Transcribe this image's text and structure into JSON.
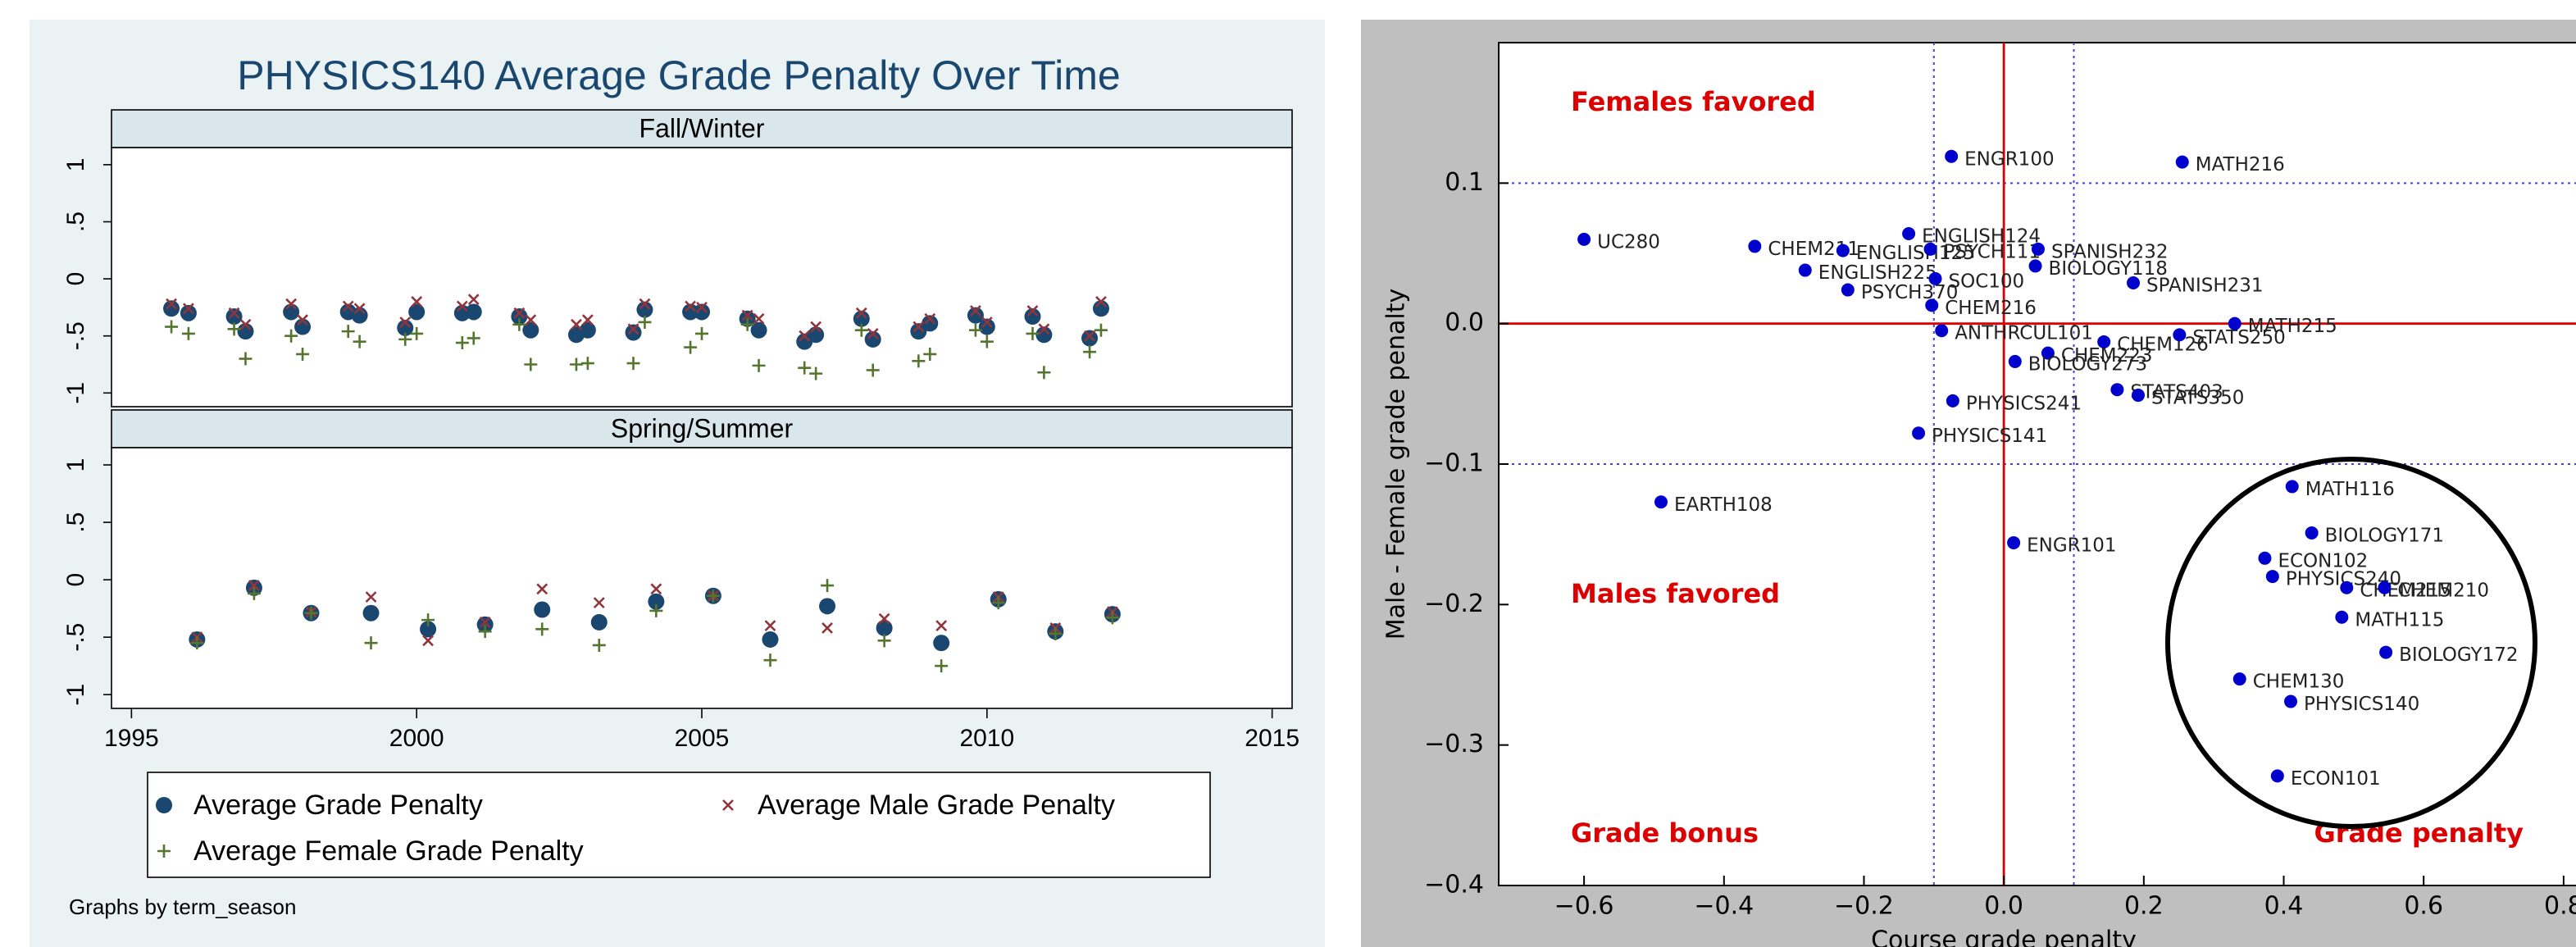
{
  "chart_data": [
    {
      "type": "stata-panels",
      "title": "PHYSICS140 Average Grade Penalty Over Time",
      "xlim": [
        1994.65,
        2015.35
      ],
      "xticks": [
        1995,
        2000,
        2005,
        2010,
        2015
      ],
      "ylim": [
        -1.12,
        1.15
      ],
      "yticks": [
        {
          "value": -1,
          "label": "-1"
        },
        {
          "value": -0.5,
          "label": "-.5"
        },
        0,
        {
          "value": 0.5,
          "label": ".5"
        },
        1
      ],
      "series": [
        {
          "name": "Average Grade Penalty",
          "color": "#1a476f",
          "marker": "circle"
        },
        {
          "name": "Average Male Grade Penalty",
          "color": "#90353b",
          "marker": "x"
        },
        {
          "name": "Average Female Grade Penalty",
          "color": "#55752f",
          "marker": "plus"
        }
      ],
      "panels": [
        {
          "title": "Fall/Winter",
          "x": [
            1995.7,
            1996.0,
            1996.8,
            1997.0,
            1997.8,
            1998.0,
            1998.8,
            1999.0,
            1999.8,
            2000.0,
            2000.8,
            2001.0,
            2001.8,
            2002.0,
            2002.8,
            2003.0,
            2003.8,
            2004.0,
            2004.8,
            2005.0,
            2005.8,
            2006.0,
            2006.8,
            2007.0,
            2007.8,
            2008.0,
            2008.8,
            2009.0,
            2009.8,
            2010.0,
            2010.8,
            2011.0,
            2011.8,
            2012.0
          ],
          "values": [
            [
              -0.26,
              -0.3,
              -0.33,
              -0.46,
              -0.29,
              -0.42,
              -0.29,
              -0.32,
              -0.43,
              -0.29,
              -0.3,
              -0.29,
              -0.33,
              -0.45,
              -0.49,
              -0.45,
              -0.47,
              -0.27,
              -0.29,
              -0.29,
              -0.35,
              -0.45,
              -0.55,
              -0.49,
              -0.35,
              -0.53,
              -0.46,
              -0.39,
              -0.32,
              -0.42,
              -0.33,
              -0.49,
              -0.52,
              -0.26
            ],
            [
              -0.22,
              -0.26,
              -0.3,
              -0.4,
              -0.22,
              -0.36,
              -0.24,
              -0.26,
              -0.38,
              -0.2,
              -0.24,
              -0.18,
              -0.3,
              -0.36,
              -0.4,
              -0.36,
              -0.44,
              -0.22,
              -0.24,
              -0.25,
              -0.32,
              -0.35,
              -0.5,
              -0.42,
              -0.3,
              -0.48,
              -0.42,
              -0.35,
              -0.28,
              -0.38,
              -0.28,
              -0.44,
              -0.5,
              -0.2
            ],
            [
              -0.42,
              -0.48,
              -0.44,
              -0.7,
              -0.5,
              -0.66,
              -0.46,
              -0.55,
              -0.53,
              -0.48,
              -0.56,
              -0.52,
              -0.4,
              -0.75,
              -0.75,
              -0.74,
              -0.74,
              -0.38,
              -0.6,
              -0.48,
              -0.4,
              -0.76,
              -0.78,
              -0.83,
              -0.45,
              -0.8,
              -0.72,
              -0.66,
              -0.45,
              -0.55,
              -0.48,
              -0.82,
              -0.64,
              -0.45
            ]
          ]
        },
        {
          "title": "Spring/Summer",
          "x": [
            1996.15,
            1997.15,
            1998.15,
            1999.2,
            2000.2,
            2001.2,
            2002.2,
            2003.2,
            2004.2,
            2005.2,
            2006.2,
            2007.2,
            2008.2,
            2009.2,
            2010.2,
            2011.2,
            2012.2
          ],
          "values": [
            [
              -0.52,
              -0.07,
              -0.29,
              -0.29,
              -0.43,
              -0.39,
              -0.26,
              -0.37,
              -0.19,
              -0.14,
              -0.52,
              -0.23,
              -0.42,
              -0.55,
              -0.17,
              -0.45,
              -0.3
            ],
            [
              -0.5,
              -0.05,
              -0.28,
              -0.15,
              -0.53,
              -0.37,
              -0.08,
              -0.2,
              -0.08,
              -0.14,
              -0.4,
              -0.42,
              -0.34,
              -0.4,
              -0.15,
              -0.42,
              -0.28
            ],
            [
              -0.55,
              -0.12,
              -0.29,
              -0.55,
              -0.35,
              -0.45,
              -0.43,
              -0.57,
              -0.27,
              -0.14,
              -0.7,
              -0.05,
              -0.53,
              -0.75,
              -0.2,
              -0.47,
              -0.33
            ]
          ]
        }
      ],
      "note": "Graphs by term_season"
    },
    {
      "type": "scatter",
      "xlabel": "Course grade penalty",
      "ylabel": "Male - Female grade penalty",
      "xlim": [
        -0.722,
        0.84
      ],
      "ylim": [
        -0.4,
        0.2
      ],
      "xticks": [
        {
          "value": -0.6,
          "label": "−0.6"
        },
        {
          "value": -0.4,
          "label": "−0.4"
        },
        {
          "value": -0.2,
          "label": "−0.2"
        },
        {
          "value": 0,
          "label": "0.0"
        },
        0.2,
        0.4,
        0.6,
        0.8
      ],
      "yticks": [
        {
          "value": -0.4,
          "label": "−0.4"
        },
        {
          "value": -0.3,
          "label": "−0.3"
        },
        {
          "value": -0.2,
          "label": "−0.2"
        },
        {
          "value": -0.1,
          "label": "−0.1"
        },
        {
          "value": 0,
          "label": "0.0"
        },
        0.1
      ],
      "color": "#0000cc",
      "reference_lines": {
        "color": "#dd0000",
        "x": [
          0
        ],
        "y": [
          0
        ]
      },
      "guide_lines": {
        "color": "#4444dd",
        "x": [
          -0.1,
          0.1
        ],
        "y": [
          -0.1,
          0.1
        ]
      },
      "annotations": [
        "Females favored",
        "Males favored",
        "Grade bonus",
        "Grade penalty"
      ],
      "labels": [
        "UC280",
        "CHEM211",
        "ENGLISH125",
        "ENGLISH225",
        "PSYCH370",
        "ENGLISH124",
        "PSYCH111",
        "SOC100",
        "CHEM216",
        "ANTHRCUL101",
        "ENGR100",
        "SPANISH232",
        "BIOLOGY118",
        "SPANISH231",
        "MATH216",
        "CHEM126",
        "CHEM223",
        "BIOLOGY273",
        "STATS250",
        "MATH215",
        "STATS403",
        "STATS350",
        "PHYSICS241",
        "PHYSICS141",
        "EARTH108",
        "ENGR101",
        "MATH116",
        "BIOLOGY171",
        "ECON102",
        "PHYSICS240",
        "CHEM215",
        "CHEM210",
        "MATH115",
        "BIOLOGY172",
        "CHEM130",
        "PHYSICS140",
        "ECON101"
      ],
      "x": [
        -0.6,
        -0.356,
        -0.23,
        -0.284,
        -0.223,
        -0.136,
        -0.105,
        -0.098,
        -0.103,
        -0.089,
        -0.075,
        0.049,
        0.045,
        0.185,
        0.255,
        0.143,
        0.063,
        0.016,
        0.251,
        0.33,
        0.162,
        0.192,
        -0.073,
        -0.122,
        -0.49,
        0.014,
        0.412,
        0.44,
        0.373,
        0.384,
        0.49,
        0.544,
        0.483,
        0.546,
        0.337,
        0.41,
        0.391
      ],
      "y": [
        0.06,
        0.055,
        0.052,
        0.038,
        0.024,
        0.064,
        0.053,
        0.032,
        0.013,
        -0.005,
        0.119,
        0.053,
        0.041,
        0.029,
        0.115,
        -0.013,
        -0.021,
        -0.027,
        -0.008,
        0.0,
        -0.047,
        -0.051,
        -0.055,
        -0.078,
        -0.127,
        -0.156,
        -0.116,
        -0.149,
        -0.167,
        -0.18,
        -0.188,
        -0.188,
        -0.209,
        -0.234,
        -0.253,
        -0.269,
        -0.322
      ]
    }
  ]
}
